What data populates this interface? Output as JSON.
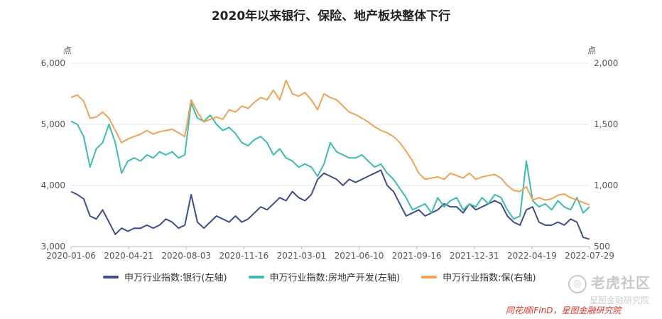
{
  "chart_data": {
    "type": "line",
    "title": "2020年以来银行、保险、地产板块整体下行",
    "left_axis": {
      "unit": "点",
      "min": 3000,
      "max": 6000,
      "ticks": [
        "3,000",
        "4,000",
        "5,000",
        "6,000"
      ]
    },
    "right_axis": {
      "unit": "点",
      "min": 500,
      "max": 2000,
      "ticks": [
        "500",
        "1,000",
        "1,500",
        "2,000"
      ]
    },
    "x_ticks": [
      "2020-01-06",
      "2020-04-21",
      "2020-08-03",
      "2020-11-16",
      "2021-03-01",
      "2021-06-10",
      "2021-09-16",
      "2021-12-31",
      "2022-04-19",
      "2022-07-29"
    ],
    "series": [
      {
        "name": "申万行业指数:银行(左轴)",
        "axis": "left",
        "color": "#3f4d8a",
        "values": [
          3900,
          3850,
          3780,
          3500,
          3450,
          3600,
          3400,
          3200,
          3300,
          3250,
          3300,
          3300,
          3350,
          3300,
          3350,
          3450,
          3400,
          3300,
          3350,
          3850,
          3400,
          3300,
          3400,
          3500,
          3450,
          3400,
          3500,
          3400,
          3450,
          3550,
          3650,
          3600,
          3700,
          3800,
          3750,
          3900,
          3800,
          3750,
          3850,
          4100,
          4200,
          4150,
          4100,
          4000,
          4100,
          4050,
          4100,
          4150,
          4200,
          4250,
          4000,
          3900,
          3700,
          3500,
          3550,
          3600,
          3500,
          3550,
          3600,
          3700,
          3650,
          3650,
          3550,
          3700,
          3600,
          3650,
          3700,
          3750,
          3700,
          3500,
          3400,
          3350,
          3600,
          3650,
          3400,
          3350,
          3350,
          3400,
          3350,
          3450,
          3400,
          3150,
          3120
        ]
      },
      {
        "name": "申万行业指数:房地产开发(左轴)",
        "axis": "left",
        "color": "#3cbcb0",
        "values": [
          5050,
          5000,
          4800,
          4300,
          4600,
          4700,
          5000,
          4700,
          4200,
          4400,
          4450,
          4400,
          4500,
          4450,
          4550,
          4500,
          4550,
          4450,
          4500,
          5350,
          5100,
          5050,
          5150,
          5000,
          4900,
          4950,
          4850,
          4700,
          4650,
          4750,
          4800,
          4700,
          4500,
          4600,
          4450,
          4400,
          4300,
          4350,
          4300,
          4150,
          4350,
          4700,
          4550,
          4500,
          4450,
          4450,
          4500,
          4400,
          4300,
          4350,
          4200,
          4100,
          3950,
          3800,
          3600,
          3650,
          3700,
          3550,
          3800,
          3650,
          3750,
          3800,
          3600,
          3700,
          3650,
          3800,
          3700,
          3850,
          3800,
          3600,
          3450,
          3500,
          4400,
          3750,
          3650,
          3700,
          3600,
          3750,
          3650,
          3600,
          3800,
          3550,
          3650
        ]
      },
      {
        "name": "申万行业指数:保(右轴)",
        "axis": "right",
        "color": "#efa255",
        "values": [
          1720,
          1740,
          1690,
          1550,
          1560,
          1600,
          1550,
          1450,
          1350,
          1380,
          1400,
          1420,
          1450,
          1420,
          1440,
          1450,
          1460,
          1430,
          1400,
          1700,
          1600,
          1520,
          1540,
          1560,
          1540,
          1620,
          1600,
          1650,
          1630,
          1680,
          1720,
          1700,
          1780,
          1700,
          1860,
          1750,
          1730,
          1760,
          1700,
          1620,
          1750,
          1720,
          1700,
          1650,
          1600,
          1580,
          1550,
          1520,
          1480,
          1450,
          1430,
          1400,
          1350,
          1280,
          1200,
          1100,
          1050,
          1060,
          1070,
          1050,
          1100,
          1080,
          1060,
          1100,
          1050,
          1070,
          1080,
          1090,
          1060,
          1000,
          960,
          950,
          990,
          880,
          900,
          880,
          890,
          920,
          930,
          900,
          880,
          860,
          840
        ]
      }
    ],
    "source": "同花顺iFinD，星图金融研究院",
    "watermark": "老虎社区",
    "watermark_sub": "星图金融研究院"
  }
}
